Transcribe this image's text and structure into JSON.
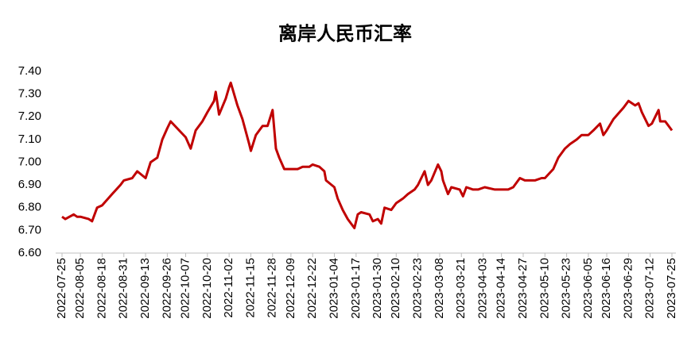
{
  "chart_data": {
    "type": "line",
    "title": "离岸人民币汇率",
    "x": [
      "2022-07-25",
      "2022-07-27",
      "2022-08-01",
      "2022-08-03",
      "2022-08-05",
      "2022-08-10",
      "2022-08-12",
      "2022-08-15",
      "2022-08-18",
      "2022-08-24",
      "2022-08-29",
      "2022-08-31",
      "2022-09-05",
      "2022-09-08",
      "2022-09-13",
      "2022-09-16",
      "2022-09-20",
      "2022-09-23",
      "2022-09-26",
      "2022-09-28",
      "2022-10-07",
      "2022-10-10",
      "2022-10-13",
      "2022-10-17",
      "2022-10-20",
      "2022-10-24",
      "2022-10-25",
      "2022-10-27",
      "2022-10-31",
      "2022-11-02",
      "2022-11-03",
      "2022-11-07",
      "2022-11-10",
      "2022-11-14",
      "2022-11-15",
      "2022-11-18",
      "2022-11-22",
      "2022-11-25",
      "2022-11-28",
      "2022-11-30",
      "2022-12-02",
      "2022-12-05",
      "2022-12-09",
      "2022-12-13",
      "2022-12-16",
      "2022-12-20",
      "2022-12-22",
      "2022-12-26",
      "2022-12-29",
      "2022-12-30",
      "2023-01-04",
      "2023-01-06",
      "2023-01-09",
      "2023-01-12",
      "2023-01-16",
      "2023-01-18",
      "2023-01-20",
      "2023-01-25",
      "2023-01-27",
      "2023-01-30",
      "2023-02-01",
      "2023-02-03",
      "2023-02-07",
      "2023-02-10",
      "2023-02-14",
      "2023-02-17",
      "2023-02-21",
      "2023-02-23",
      "2023-02-27",
      "2023-03-01",
      "2023-03-03",
      "2023-03-07",
      "2023-03-09",
      "2023-03-10",
      "2023-03-13",
      "2023-03-15",
      "2023-03-20",
      "2023-03-22",
      "2023-03-24",
      "2023-03-28",
      "2023-03-31",
      "2023-04-04",
      "2023-04-10",
      "2023-04-13",
      "2023-04-18",
      "2023-04-21",
      "2023-04-25",
      "2023-04-28",
      "2023-05-04",
      "2023-05-08",
      "2023-05-10",
      "2023-05-15",
      "2023-05-18",
      "2023-05-22",
      "2023-05-25",
      "2023-05-29",
      "2023-06-01",
      "2023-06-05",
      "2023-06-08",
      "2023-06-12",
      "2023-06-14",
      "2023-06-16",
      "2023-06-20",
      "2023-06-26",
      "2023-06-29",
      "2023-07-03",
      "2023-07-05",
      "2023-07-07",
      "2023-07-11",
      "2023-07-13",
      "2023-07-17",
      "2023-07-18",
      "2023-07-21",
      "2023-07-25"
    ],
    "series": [
      {
        "color": "#c00000",
        "values": [
          6.76,
          6.75,
          6.77,
          6.76,
          6.76,
          6.75,
          6.74,
          6.8,
          6.81,
          6.86,
          6.9,
          6.92,
          6.93,
          6.96,
          6.93,
          7.0,
          7.02,
          7.1,
          7.15,
          7.18,
          7.11,
          7.06,
          7.14,
          7.18,
          7.22,
          7.27,
          7.31,
          7.21,
          7.28,
          7.33,
          7.35,
          7.25,
          7.19,
          7.08,
          7.05,
          7.12,
          7.16,
          7.16,
          7.23,
          7.06,
          7.02,
          6.97,
          6.97,
          6.97,
          6.98,
          6.98,
          6.99,
          6.98,
          6.96,
          6.92,
          6.89,
          6.84,
          6.79,
          6.75,
          6.71,
          6.77,
          6.78,
          6.77,
          6.74,
          6.75,
          6.73,
          6.8,
          6.79,
          6.82,
          6.84,
          6.86,
          6.88,
          6.9,
          6.96,
          6.9,
          6.92,
          6.99,
          6.96,
          6.92,
          6.86,
          6.89,
          6.88,
          6.85,
          6.89,
          6.88,
          6.88,
          6.89,
          6.88,
          6.88,
          6.88,
          6.89,
          6.93,
          6.92,
          6.92,
          6.93,
          6.93,
          6.97,
          7.02,
          7.06,
          7.08,
          7.1,
          7.12,
          7.12,
          7.14,
          7.17,
          7.12,
          7.14,
          7.19,
          7.24,
          7.27,
          7.25,
          7.26,
          7.22,
          7.16,
          7.17,
          7.23,
          7.18,
          7.18,
          7.14
        ]
      }
    ],
    "xlim": [
      "2022-07-25",
      "2023-07-25"
    ],
    "xticks": [
      "2022-07-25",
      "2022-08-05",
      "2022-08-18",
      "2022-08-31",
      "2022-09-13",
      "2022-09-26",
      "2022-10-07",
      "2022-10-20",
      "2022-11-02",
      "2022-11-15",
      "2022-11-28",
      "2022-12-09",
      "2022-12-22",
      "2023-01-04",
      "2023-01-17",
      "2023-01-30",
      "2023-02-10",
      "2023-02-23",
      "2023-03-08",
      "2023-03-21",
      "2023-04-03",
      "2023-04-14",
      "2023-04-27",
      "2023-05-10",
      "2023-05-23",
      "2023-06-05",
      "2023-06-16",
      "2023-06-29",
      "2023-07-12",
      "2023-07-25"
    ],
    "ylim": [
      6.6,
      7.4
    ],
    "yticks": [
      {
        "value": 6.6,
        "label": "6.60"
      },
      {
        "value": 6.7,
        "label": "6.70"
      },
      {
        "value": 6.8,
        "label": "6.80"
      },
      {
        "value": 6.9,
        "label": "6.90"
      },
      {
        "value": 7.0,
        "label": "7.00"
      },
      {
        "value": 7.1,
        "label": "7.10"
      },
      {
        "value": 7.2,
        "label": "7.20"
      },
      {
        "value": 7.3,
        "label": "7.30"
      },
      {
        "value": 7.4,
        "label": "7.40"
      }
    ],
    "grid": false
  }
}
